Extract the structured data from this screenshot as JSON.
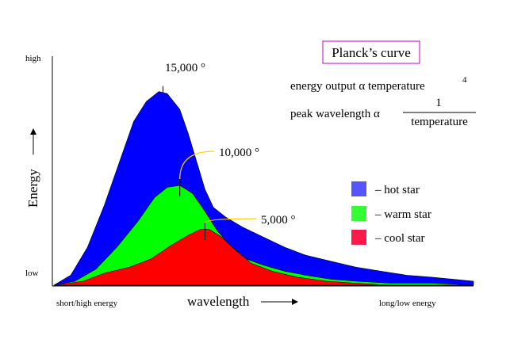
{
  "chart_data": {
    "type": "area",
    "title": "Planck’s curve",
    "xlabel": "wavelength",
    "ylabel": "Energy",
    "y_tick_labels": {
      "high": "high",
      "low": "low"
    },
    "x_tick_labels": {
      "left": "short/high energy",
      "right": "long/low energy"
    },
    "formulas": {
      "energy_line": "energy output α  temperature",
      "energy_exp": "4",
      "peak_prefix": "peak wavelength α",
      "peak_num": "1",
      "peak_den": "temperature"
    },
    "xlim": [
      0,
      1
    ],
    "ylim": [
      0,
      1
    ],
    "legend_position": "right",
    "series": [
      {
        "name": "– hot star",
        "color": "#0000ff",
        "legend_color": "#5555ff",
        "peak_label": "15,000 °",
        "peak_x": 0.26,
        "points": [
          [
            0.0,
            0.0
          ],
          [
            0.04,
            0.05
          ],
          [
            0.08,
            0.19
          ],
          [
            0.12,
            0.4
          ],
          [
            0.16,
            0.64
          ],
          [
            0.19,
            0.82
          ],
          [
            0.22,
            0.92
          ],
          [
            0.25,
            0.97
          ],
          [
            0.27,
            0.96
          ],
          [
            0.3,
            0.88
          ],
          [
            0.32,
            0.76
          ],
          [
            0.34,
            0.62
          ],
          [
            0.36,
            0.48
          ],
          [
            0.38,
            0.39
          ],
          [
            0.41,
            0.34
          ],
          [
            0.45,
            0.29
          ],
          [
            0.5,
            0.24
          ],
          [
            0.55,
            0.19
          ],
          [
            0.6,
            0.15
          ],
          [
            0.66,
            0.12
          ],
          [
            0.72,
            0.09
          ],
          [
            0.78,
            0.07
          ],
          [
            0.84,
            0.05
          ],
          [
            0.9,
            0.04
          ],
          [
            0.95,
            0.03
          ],
          [
            1.0,
            0.02
          ]
        ]
      },
      {
        "name": "– warm star",
        "color": "#00ff00",
        "legend_color": "#33ff33",
        "peak_label": "10,000 °",
        "peak_x": 0.3,
        "points": [
          [
            0.0,
            0.0
          ],
          [
            0.05,
            0.02
          ],
          [
            0.1,
            0.08
          ],
          [
            0.15,
            0.19
          ],
          [
            0.2,
            0.32
          ],
          [
            0.24,
            0.44
          ],
          [
            0.27,
            0.49
          ],
          [
            0.3,
            0.5
          ],
          [
            0.33,
            0.46
          ],
          [
            0.36,
            0.37
          ],
          [
            0.39,
            0.27
          ],
          [
            0.42,
            0.2
          ],
          [
            0.46,
            0.13
          ],
          [
            0.5,
            0.1
          ],
          [
            0.55,
            0.07
          ],
          [
            0.6,
            0.05
          ],
          [
            0.66,
            0.03
          ],
          [
            0.72,
            0.02
          ],
          [
            0.8,
            0.01
          ],
          [
            0.9,
            0.01
          ],
          [
            1.0,
            0.0
          ]
        ]
      },
      {
        "name": "– cool star",
        "color": "#ff0000",
        "legend_color": "#ff1a4a",
        "peak_label": "5,000 °",
        "peak_x": 0.36,
        "points": [
          [
            0.0,
            0.0
          ],
          [
            0.07,
            0.02
          ],
          [
            0.12,
            0.06
          ],
          [
            0.18,
            0.09
          ],
          [
            0.23,
            0.13
          ],
          [
            0.28,
            0.2
          ],
          [
            0.32,
            0.25
          ],
          [
            0.35,
            0.28
          ],
          [
            0.37,
            0.28
          ],
          [
            0.4,
            0.24
          ],
          [
            0.43,
            0.18
          ],
          [
            0.47,
            0.11
          ],
          [
            0.52,
            0.07
          ],
          [
            0.58,
            0.04
          ],
          [
            0.65,
            0.02
          ],
          [
            0.72,
            0.01
          ],
          [
            0.8,
            0.0
          ],
          [
            1.0,
            0.0
          ]
        ]
      }
    ]
  }
}
